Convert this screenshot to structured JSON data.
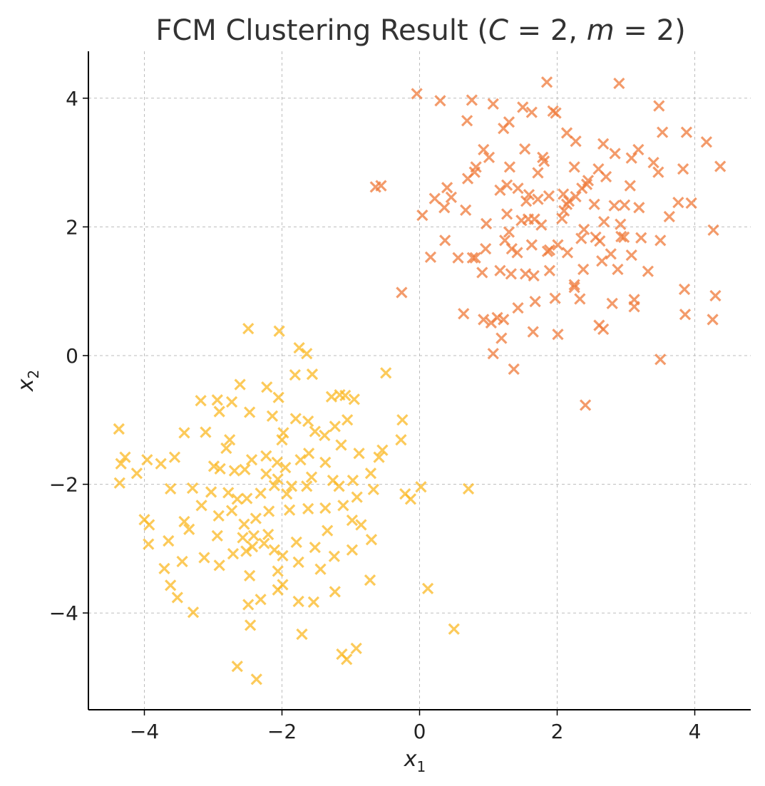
{
  "chart_data": {
    "type": "scatter",
    "title": "FCM Clustering Result (C = 2, m = 2)",
    "title_parts": {
      "prefix": "FCM Clustering Result (",
      "c_var": "C",
      "c_val": " = 2, ",
      "m_var": "m",
      "m_val": " = 2)"
    },
    "xlabel": {
      "base": "x",
      "sub": "1"
    },
    "ylabel": {
      "base": "x",
      "sub": "2"
    },
    "xlim": [
      -4.85,
      4.85
    ],
    "ylim": [
      -5.5,
      4.72
    ],
    "xticks": [
      -4,
      -2,
      0,
      2,
      4
    ],
    "yticks": [
      -4,
      -2,
      0,
      2,
      4
    ],
    "tick_labels_x": [
      "−4",
      "−2",
      "0",
      "2",
      "4"
    ],
    "tick_labels_y": [
      "−4",
      "−2",
      "0",
      "2",
      "4"
    ],
    "grid": true,
    "marker": "x",
    "series": [
      {
        "color": "#f07a3a",
        "points": [
          [
            -0.04,
            4.07
          ],
          [
            0.3,
            3.96
          ],
          [
            0.76,
            3.97
          ],
          [
            1.07,
            3.91
          ],
          [
            1.5,
            3.86
          ],
          [
            1.85,
            4.25
          ],
          [
            1.98,
            3.77
          ],
          [
            2.9,
            4.23
          ],
          [
            3.48,
            3.88
          ],
          [
            3.53,
            3.47
          ],
          [
            3.88,
            3.47
          ],
          [
            4.17,
            3.32
          ],
          [
            4.37,
            2.94
          ],
          [
            3.83,
            2.9
          ],
          [
            3.47,
            2.85
          ],
          [
            0.69,
            3.65
          ],
          [
            1.3,
            3.63
          ],
          [
            1.53,
            3.21
          ],
          [
            1.63,
            3.78
          ],
          [
            1.94,
            3.8
          ],
          [
            2.14,
            3.46
          ],
          [
            2.27,
            3.33
          ],
          [
            2.67,
            3.29
          ],
          [
            2.84,
            3.14
          ],
          [
            3.08,
            3.07
          ],
          [
            3.18,
            3.2
          ],
          [
            3.4,
            3.0
          ],
          [
            0.93,
            3.2
          ],
          [
            1.01,
            3.08
          ],
          [
            1.22,
            3.53
          ],
          [
            1.79,
            3.08
          ],
          [
            1.81,
            3.02
          ],
          [
            2.25,
            2.93
          ],
          [
            2.45,
            2.72
          ],
          [
            2.6,
            2.9
          ],
          [
            2.71,
            2.78
          ],
          [
            0.82,
            2.93
          ],
          [
            0.8,
            2.85
          ],
          [
            0.7,
            2.75
          ],
          [
            1.31,
            2.93
          ],
          [
            1.59,
            2.5
          ],
          [
            1.72,
            2.84
          ],
          [
            -0.64,
            2.62
          ],
          [
            -0.56,
            2.64
          ],
          [
            0.22,
            2.44
          ],
          [
            0.4,
            2.61
          ],
          [
            0.46,
            2.46
          ],
          [
            0.36,
            2.3
          ],
          [
            1.17,
            2.57
          ],
          [
            1.27,
            2.65
          ],
          [
            1.43,
            2.6
          ],
          [
            1.55,
            2.4
          ],
          [
            1.72,
            2.43
          ],
          [
            1.88,
            2.48
          ],
          [
            2.09,
            2.51
          ],
          [
            2.17,
            2.4
          ],
          [
            2.27,
            2.47
          ],
          [
            2.36,
            2.6
          ],
          [
            2.43,
            2.66
          ],
          [
            2.54,
            2.35
          ],
          [
            2.83,
            2.33
          ],
          [
            2.98,
            2.34
          ],
          [
            3.06,
            2.64
          ],
          [
            3.63,
            2.16
          ],
          [
            3.76,
            2.38
          ],
          [
            3.95,
            2.37
          ],
          [
            0.04,
            2.18
          ],
          [
            0.67,
            2.26
          ],
          [
            0.97,
            2.05
          ],
          [
            1.27,
            2.2
          ],
          [
            1.48,
            2.1
          ],
          [
            1.58,
            2.12
          ],
          [
            1.67,
            2.12
          ],
          [
            1.77,
            2.03
          ],
          [
            2.07,
            2.13
          ],
          [
            2.14,
            2.35
          ],
          [
            2.39,
            1.96
          ],
          [
            2.56,
            1.84
          ],
          [
            2.68,
            2.08
          ],
          [
            2.92,
            2.04
          ],
          [
            3.19,
            2.3
          ],
          [
            4.27,
            1.95
          ],
          [
            0.16,
            1.53
          ],
          [
            0.37,
            1.79
          ],
          [
            0.56,
            1.52
          ],
          [
            0.81,
            1.52
          ],
          [
            0.96,
            1.66
          ],
          [
            1.24,
            1.79
          ],
          [
            1.34,
            1.66
          ],
          [
            1.42,
            1.6
          ],
          [
            1.63,
            1.72
          ],
          [
            1.86,
            1.62
          ],
          [
            2.01,
            1.72
          ],
          [
            2.15,
            1.6
          ],
          [
            2.35,
            1.82
          ],
          [
            2.62,
            1.78
          ],
          [
            2.78,
            1.58
          ],
          [
            2.97,
            1.84
          ],
          [
            3.08,
            1.56
          ],
          [
            3.22,
            1.83
          ],
          [
            3.5,
            1.79
          ],
          [
            0.77,
            1.52
          ],
          [
            0.91,
            1.29
          ],
          [
            1.17,
            1.32
          ],
          [
            1.33,
            1.27
          ],
          [
            1.54,
            1.27
          ],
          [
            1.66,
            1.24
          ],
          [
            1.89,
            1.32
          ],
          [
            2.25,
            1.1
          ],
          [
            2.38,
            1.34
          ],
          [
            2.65,
            1.47
          ],
          [
            2.88,
            1.34
          ],
          [
            3.32,
            1.31
          ],
          [
            -0.26,
            0.98
          ],
          [
            0.64,
            0.65
          ],
          [
            0.93,
            0.56
          ],
          [
            1.04,
            0.51
          ],
          [
            1.13,
            0.59
          ],
          [
            1.22,
            0.56
          ],
          [
            1.43,
            0.74
          ],
          [
            1.68,
            0.84
          ],
          [
            1.97,
            0.89
          ],
          [
            2.25,
            1.06
          ],
          [
            2.33,
            0.88
          ],
          [
            2.61,
            0.47
          ],
          [
            2.8,
            0.81
          ],
          [
            3.12,
            0.87
          ],
          [
            3.12,
            0.76
          ],
          [
            3.85,
            1.03
          ],
          [
            3.86,
            0.64
          ],
          [
            4.3,
            0.93
          ],
          [
            4.26,
            0.56
          ],
          [
            1.07,
            0.03
          ],
          [
            1.19,
            0.27
          ],
          [
            1.65,
            0.37
          ],
          [
            2.01,
            0.33
          ],
          [
            2.67,
            0.41
          ],
          [
            1.37,
            -0.21
          ],
          [
            3.5,
            -0.06
          ],
          [
            2.41,
            -0.77
          ],
          [
            2.93,
            1.85
          ],
          [
            1.3,
            1.92
          ],
          [
            1.89,
            1.64
          ],
          [
            2.1,
            2.25
          ]
        ]
      },
      {
        "color": "#fbb924",
        "points": [
          [
            -2.49,
            0.42
          ],
          [
            -2.04,
            0.38
          ],
          [
            -1.75,
            0.12
          ],
          [
            -1.64,
            0.03
          ],
          [
            -1.81,
            -0.3
          ],
          [
            -1.56,
            -0.29
          ],
          [
            -0.49,
            -0.27
          ],
          [
            -1.08,
            -0.62
          ],
          [
            -1.16,
            -0.61
          ],
          [
            -2.22,
            -0.49
          ],
          [
            -2.61,
            -0.45
          ],
          [
            -0.95,
            -0.68
          ],
          [
            -1.28,
            -0.64
          ],
          [
            -2.05,
            -0.65
          ],
          [
            -0.25,
            -1.0
          ],
          [
            -2.94,
            -0.69
          ],
          [
            -3.18,
            -0.7
          ],
          [
            -2.73,
            -0.72
          ],
          [
            -2.91,
            -0.87
          ],
          [
            -2.47,
            -0.88
          ],
          [
            -2.14,
            -0.94
          ],
          [
            -1.8,
            -0.98
          ],
          [
            -1.62,
            -1.02
          ],
          [
            -1.52,
            -1.18
          ],
          [
            -1.23,
            -1.1
          ],
          [
            -1.05,
            -1.0
          ],
          [
            -1.38,
            -1.24
          ],
          [
            -1.98,
            -1.2
          ],
          [
            -2.0,
            -1.31
          ],
          [
            -3.11,
            -1.19
          ],
          [
            -3.42,
            -1.2
          ],
          [
            -4.37,
            -1.14
          ],
          [
            -4.28,
            -1.58
          ],
          [
            -4.34,
            -1.68
          ],
          [
            -4.11,
            -1.83
          ],
          [
            -3.96,
            -1.62
          ],
          [
            -3.76,
            -1.68
          ],
          [
            -3.56,
            -1.58
          ],
          [
            -2.76,
            -1.31
          ],
          [
            -2.81,
            -1.44
          ],
          [
            -2.44,
            -1.62
          ],
          [
            -2.23,
            -1.56
          ],
          [
            -2.07,
            -1.66
          ],
          [
            -1.95,
            -1.74
          ],
          [
            -1.73,
            -1.62
          ],
          [
            -1.61,
            -1.52
          ],
          [
            -1.37,
            -1.66
          ],
          [
            -1.14,
            -1.39
          ],
          [
            -0.88,
            -1.52
          ],
          [
            -0.54,
            -1.47
          ],
          [
            -0.59,
            -1.58
          ],
          [
            -0.27,
            -1.31
          ],
          [
            -2.99,
            -1.72
          ],
          [
            -2.9,
            -1.76
          ],
          [
            -2.69,
            -1.79
          ],
          [
            -2.54,
            -1.77
          ],
          [
            -2.23,
            -1.84
          ],
          [
            -2.06,
            -1.92
          ],
          [
            -1.86,
            -2.03
          ],
          [
            -1.57,
            -1.89
          ],
          [
            -1.26,
            -1.94
          ],
          [
            -1.17,
            -2.03
          ],
          [
            -0.97,
            -1.94
          ],
          [
            -0.71,
            -1.83
          ],
          [
            -0.21,
            -2.15
          ],
          [
            0.02,
            -2.04
          ],
          [
            0.71,
            -2.07
          ],
          [
            -4.36,
            -1.98
          ],
          [
            -3.62,
            -2.07
          ],
          [
            -3.3,
            -2.06
          ],
          [
            -3.03,
            -2.12
          ],
          [
            -2.78,
            -2.13
          ],
          [
            -2.65,
            -2.23
          ],
          [
            -2.51,
            -2.22
          ],
          [
            -2.31,
            -2.14
          ],
          [
            -2.11,
            -2.02
          ],
          [
            -1.93,
            -2.15
          ],
          [
            -1.64,
            -2.03
          ],
          [
            -1.37,
            -2.37
          ],
          [
            -1.11,
            -2.33
          ],
          [
            -0.91,
            -2.2
          ],
          [
            -0.67,
            -2.08
          ],
          [
            -0.13,
            -2.23
          ],
          [
            -4.0,
            -2.55
          ],
          [
            -3.93,
            -2.63
          ],
          [
            -3.42,
            -2.58
          ],
          [
            -3.35,
            -2.7
          ],
          [
            -3.17,
            -2.33
          ],
          [
            -2.92,
            -2.49
          ],
          [
            -2.73,
            -2.41
          ],
          [
            -2.55,
            -2.62
          ],
          [
            -2.38,
            -2.53
          ],
          [
            -2.19,
            -2.42
          ],
          [
            -1.89,
            -2.4
          ],
          [
            -1.62,
            -2.38
          ],
          [
            -1.34,
            -2.72
          ],
          [
            -0.98,
            -2.56
          ],
          [
            -0.85,
            -2.63
          ],
          [
            -3.94,
            -2.93
          ],
          [
            -3.65,
            -2.88
          ],
          [
            -3.13,
            -3.14
          ],
          [
            -2.94,
            -2.8
          ],
          [
            -2.71,
            -3.08
          ],
          [
            -2.52,
            -3.04
          ],
          [
            -2.41,
            -2.8
          ],
          [
            -2.26,
            -2.92
          ],
          [
            -2.11,
            -3.02
          ],
          [
            -1.99,
            -3.11
          ],
          [
            -1.79,
            -2.9
          ],
          [
            -1.52,
            -2.98
          ],
          [
            -1.24,
            -3.12
          ],
          [
            -0.98,
            -3.02
          ],
          [
            -0.7,
            -2.86
          ],
          [
            -3.71,
            -3.31
          ],
          [
            -3.45,
            -3.2
          ],
          [
            -2.91,
            -3.26
          ],
          [
            -2.47,
            -3.42
          ],
          [
            -2.06,
            -3.35
          ],
          [
            -1.76,
            -3.21
          ],
          [
            -1.44,
            -3.32
          ],
          [
            -3.62,
            -3.57
          ],
          [
            -3.52,
            -3.76
          ],
          [
            -3.29,
            -3.99
          ],
          [
            -2.49,
            -3.87
          ],
          [
            -2.31,
            -3.79
          ],
          [
            -2.06,
            -3.64
          ],
          [
            -1.99,
            -3.56
          ],
          [
            -1.76,
            -3.82
          ],
          [
            -1.54,
            -3.83
          ],
          [
            -1.23,
            -3.67
          ],
          [
            -0.72,
            -3.49
          ],
          [
            0.12,
            -3.62
          ],
          [
            -2.46,
            -4.19
          ],
          [
            -1.71,
            -4.33
          ],
          [
            0.5,
            -4.25
          ],
          [
            -1.13,
            -4.64
          ],
          [
            -1.06,
            -4.72
          ],
          [
            -0.92,
            -4.55
          ],
          [
            -2.65,
            -4.83
          ],
          [
            -2.37,
            -5.03
          ],
          [
            -2.43,
            -2.97
          ],
          [
            -2.57,
            -2.83
          ],
          [
            -2.2,
            -2.78
          ]
        ]
      }
    ]
  }
}
